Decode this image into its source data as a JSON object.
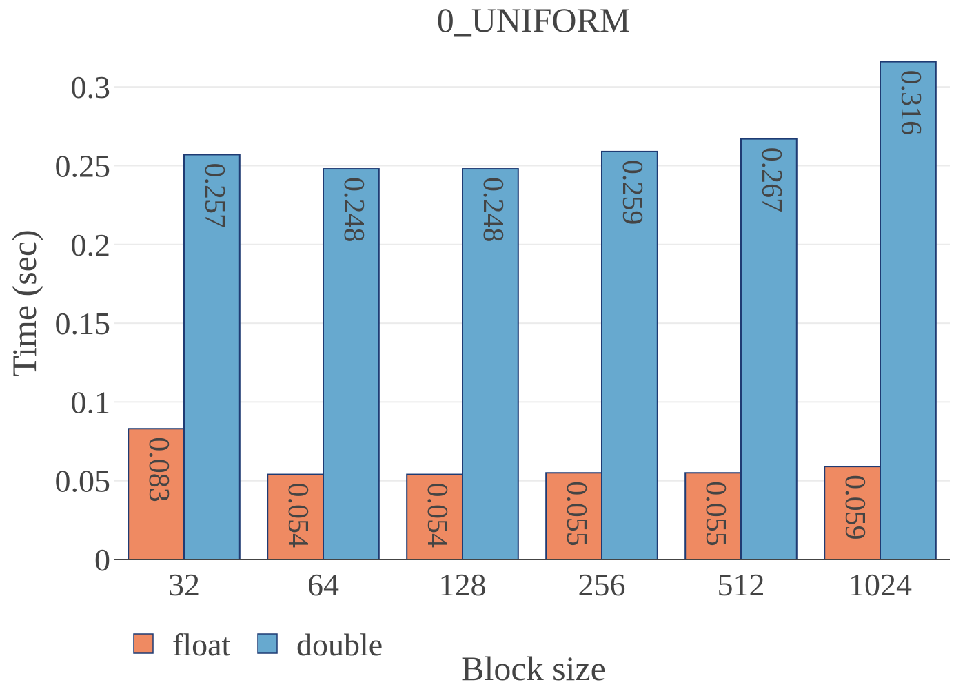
{
  "chart_data": {
    "type": "bar",
    "title": "0_UNIFORM",
    "xlabel": "Block size",
    "ylabel": "Time (sec)",
    "categories": [
      "32",
      "64",
      "128",
      "256",
      "512",
      "1024"
    ],
    "series": [
      {
        "name": "float",
        "color": "#EF8A62",
        "values": [
          0.083,
          0.054,
          0.054,
          0.055,
          0.055,
          0.059
        ],
        "labels": [
          "0.083",
          "0.054",
          "0.054",
          "0.055",
          "0.055",
          "0.059"
        ]
      },
      {
        "name": "double",
        "color": "#67A9CF",
        "values": [
          0.257,
          0.248,
          0.248,
          0.259,
          0.267,
          0.316
        ],
        "labels": [
          "0.257",
          "0.248",
          "0.248",
          "0.259",
          "0.267",
          "0.316"
        ]
      }
    ],
    "yticks": [
      0,
      0.05,
      0.1,
      0.15,
      0.2,
      0.25,
      0.3
    ],
    "ytick_labels": [
      "0",
      "0.05",
      "0.1",
      "0.15",
      "0.2",
      "0.25",
      "0.3"
    ],
    "ylim": [
      0,
      0.3202
    ],
    "grid": true,
    "legend_position": "bottom-left",
    "bar_outline_color": "#1F3B73",
    "grid_color": "#EBEBEB",
    "text_color": "#444444"
  }
}
